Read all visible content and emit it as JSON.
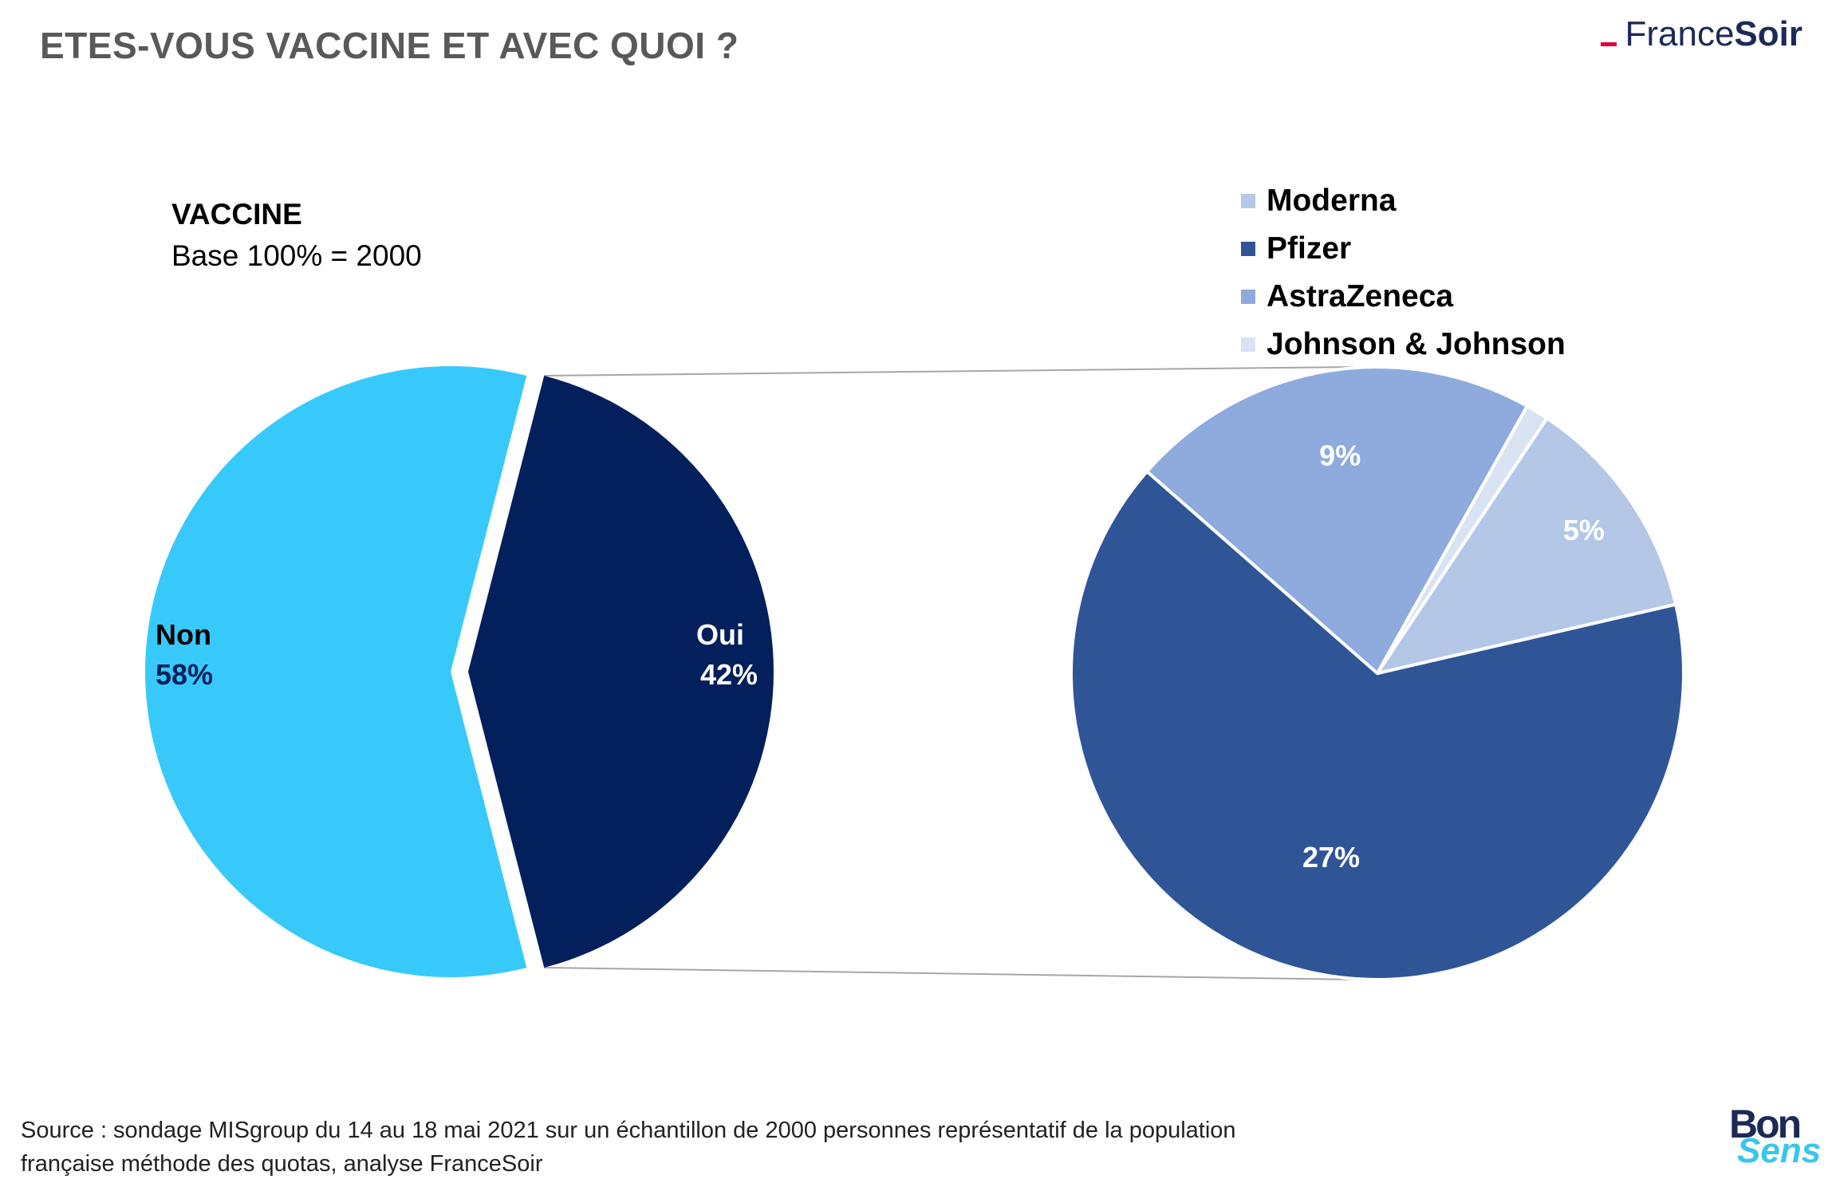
{
  "header": {
    "title": "ETES-VOUS VACCINE ET AVEC QUOI ?",
    "brand_regular": "France",
    "brand_bold": "Soir"
  },
  "subtitle": {
    "heading": "VACCINE",
    "base": "Base 100% = 2000"
  },
  "chart_data": [
    {
      "type": "pie",
      "slices": [
        {
          "name": "Non",
          "value": 58,
          "label": "58%",
          "color": "#38c9fb"
        },
        {
          "name": "Oui",
          "value": 42,
          "label": "42%",
          "color": "#03205c"
        }
      ]
    },
    {
      "type": "pie",
      "legend_position": "top",
      "slices": [
        {
          "name": "Pfizer",
          "value": 27,
          "label": "27%",
          "color": "#305597"
        },
        {
          "name": "AstraZeneca",
          "value": 9,
          "label": "9%",
          "color": "#8faadc"
        },
        {
          "name": "Johnson & Johnson",
          "value": 0.5,
          "label": "",
          "color": "#dae3f3"
        },
        {
          "name": "Moderna",
          "value": 5,
          "label": "5%",
          "color": "#b4c7e7"
        }
      ],
      "legend": [
        {
          "name": "Moderna",
          "color": "#b4c7e7"
        },
        {
          "name": "Pfizer",
          "color": "#305597"
        },
        {
          "name": "AstraZeneca",
          "color": "#8faadc"
        },
        {
          "name": "Johnson & Johnson",
          "color": "#dae3f3"
        }
      ]
    }
  ],
  "footer": {
    "source_line1": "Source : sondage MISgroup du 14 au 18 mai 2021 sur un échantillon de 2000 personnes représentatif de la population",
    "source_line2": "française méthode des quotas, analyse FranceSoir",
    "logo_bon": "Bon",
    "logo_sens": "Sens"
  }
}
